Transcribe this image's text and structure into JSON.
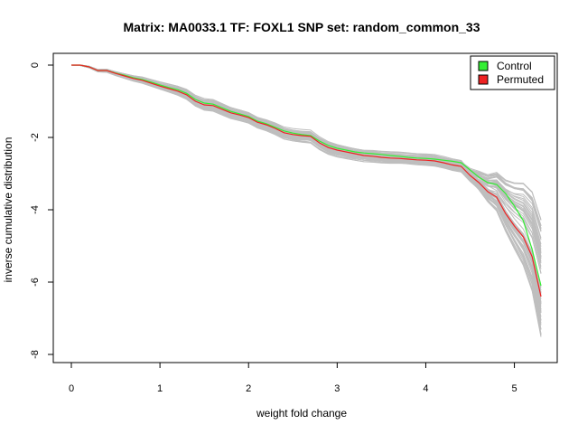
{
  "chart_data": {
    "type": "line",
    "title": "Matrix: MA0033.1 TF: FOXL1 SNP set: random_common_33",
    "xlabel": "weight fold change",
    "ylabel": "inverse cumulative distribution",
    "xlim": [
      0,
      5.3
    ],
    "ylim": [
      -8,
      0
    ],
    "x_ticks": [
      0,
      1,
      2,
      3,
      4,
      5
    ],
    "y_ticks": [
      0,
      -2,
      -4,
      -6,
      -8
    ],
    "legend_position": "top-right",
    "legend": [
      {
        "label": "Control",
        "color": "#33ee33"
      },
      {
        "label": "Permuted",
        "color": "#ee2222"
      }
    ],
    "background_series_color": "#bebebe",
    "background_series_count": 60,
    "background_series_note": "many grey permutation curves spread around the main curves, widening beyond x = 4.5 down to y of about -8",
    "series": [
      {
        "name": "Control",
        "color": "#33ee33",
        "x": [
          0,
          0.1,
          0.2,
          0.3,
          0.4,
          0.5,
          0.6,
          0.7,
          0.8,
          0.9,
          1.0,
          1.1,
          1.2,
          1.3,
          1.4,
          1.5,
          1.6,
          1.7,
          1.8,
          1.9,
          2.0,
          2.1,
          2.2,
          2.3,
          2.4,
          2.5,
          2.6,
          2.7,
          2.8,
          2.9,
          3.0,
          3.1,
          3.2,
          3.3,
          3.4,
          3.5,
          3.6,
          3.7,
          3.8,
          3.9,
          4.0,
          4.1,
          4.2,
          4.3,
          4.4,
          4.5,
          4.6,
          4.7,
          4.8,
          4.9,
          5.0,
          5.1,
          5.2,
          5.3
        ],
        "y": [
          0,
          0,
          -0.05,
          -0.15,
          -0.15,
          -0.22,
          -0.28,
          -0.35,
          -0.4,
          -0.47,
          -0.55,
          -0.62,
          -0.68,
          -0.78,
          -0.95,
          -1.05,
          -1.08,
          -1.18,
          -1.28,
          -1.35,
          -1.42,
          -1.55,
          -1.62,
          -1.72,
          -1.82,
          -1.88,
          -1.92,
          -1.95,
          -2.1,
          -2.22,
          -2.3,
          -2.35,
          -2.4,
          -2.43,
          -2.45,
          -2.47,
          -2.5,
          -2.52,
          -2.55,
          -2.57,
          -2.58,
          -2.6,
          -2.63,
          -2.66,
          -2.7,
          -2.9,
          -3.1,
          -3.25,
          -3.3,
          -3.55,
          -3.9,
          -4.3,
          -5.1,
          -6.1
        ]
      },
      {
        "name": "Permuted",
        "color": "#ee2222",
        "x": [
          0,
          0.1,
          0.2,
          0.3,
          0.4,
          0.5,
          0.6,
          0.7,
          0.8,
          0.9,
          1.0,
          1.1,
          1.2,
          1.3,
          1.4,
          1.5,
          1.6,
          1.7,
          1.8,
          1.9,
          2.0,
          2.1,
          2.2,
          2.3,
          2.4,
          2.5,
          2.6,
          2.7,
          2.8,
          2.9,
          3.0,
          3.1,
          3.2,
          3.3,
          3.4,
          3.5,
          3.6,
          3.7,
          3.8,
          3.9,
          4.0,
          4.1,
          4.2,
          4.3,
          4.4,
          4.5,
          4.6,
          4.7,
          4.8,
          4.9,
          5.0,
          5.1,
          5.2,
          5.3
        ],
        "y": [
          0,
          0,
          -0.05,
          -0.15,
          -0.15,
          -0.23,
          -0.3,
          -0.37,
          -0.42,
          -0.5,
          -0.58,
          -0.65,
          -0.72,
          -0.82,
          -1.0,
          -1.1,
          -1.12,
          -1.22,
          -1.32,
          -1.38,
          -1.45,
          -1.58,
          -1.65,
          -1.75,
          -1.87,
          -1.92,
          -1.95,
          -1.97,
          -2.15,
          -2.28,
          -2.35,
          -2.4,
          -2.45,
          -2.5,
          -2.52,
          -2.55,
          -2.57,
          -2.58,
          -2.6,
          -2.62,
          -2.63,
          -2.65,
          -2.7,
          -2.76,
          -2.8,
          -3.05,
          -3.25,
          -3.5,
          -3.65,
          -4.1,
          -4.45,
          -4.75,
          -5.3,
          -6.4
        ]
      }
    ]
  }
}
